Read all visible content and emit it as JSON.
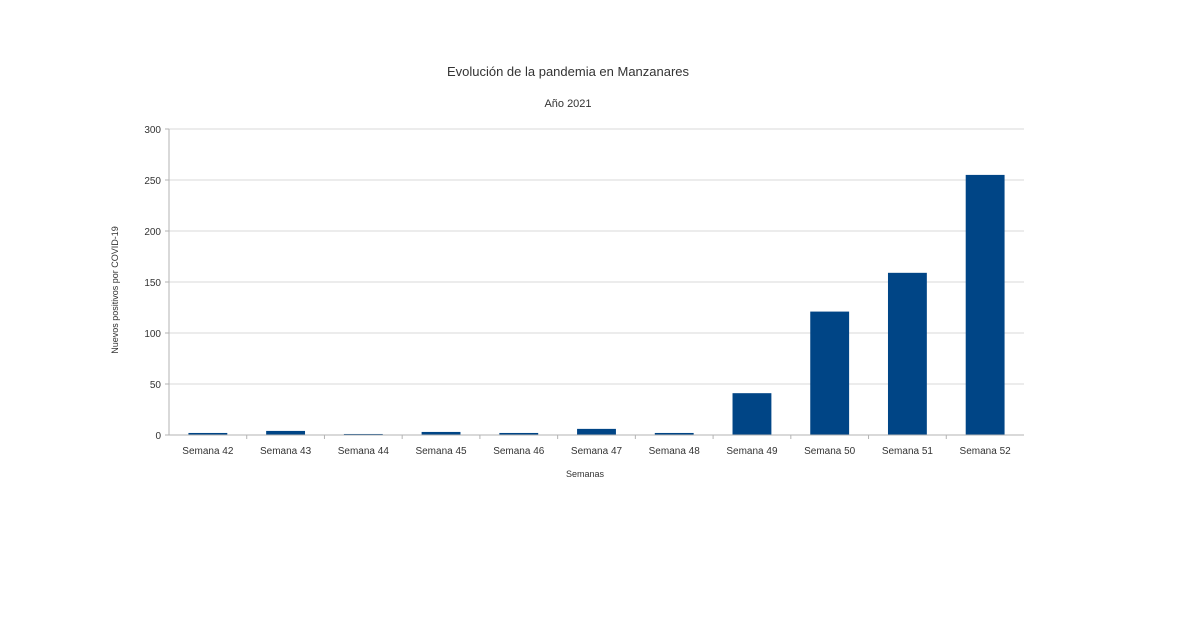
{
  "chart_data": {
    "type": "bar",
    "title": "Evolución de la pandemia en Manzanares",
    "subtitle": "Año 2021",
    "xlabel": "Semanas",
    "ylabel": "Nuevos positivos por COVID-19",
    "categories": [
      "Semana 42",
      "Semana 43",
      "Semana 44",
      "Semana 45",
      "Semana 46",
      "Semana 47",
      "Semana 48",
      "Semana 49",
      "Semana 50",
      "Semana 51",
      "Semana 52"
    ],
    "values": [
      2,
      4,
      1,
      3,
      2,
      6,
      2,
      41,
      121,
      159,
      255
    ],
    "ylim": [
      0,
      300
    ],
    "yticks": [
      "0",
      "50",
      "100",
      "150",
      "200",
      "250",
      "300"
    ],
    "grid": true,
    "bar_color": "#004586"
  }
}
